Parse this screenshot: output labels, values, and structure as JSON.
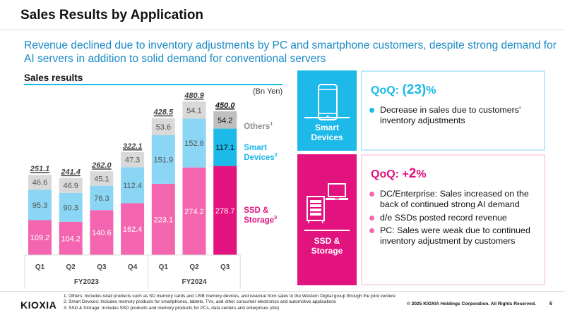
{
  "header": {
    "title": "Sales Results by Application",
    "headline": "Revenue declined due to inventory adjustments by PC and smartphone customers, despite strong demand for AI servers in addition to solid demand for conventional servers"
  },
  "sales_section": {
    "label": "Sales results",
    "unit": "(Bn Yen)"
  },
  "colors": {
    "ssd_storage": "#f465b0",
    "ssd_storage_latest": "#e2127f",
    "smart_devices": "#8ad6f4",
    "smart_devices_latest": "#1db9e9",
    "others": "#d9d9d9",
    "others_latest": "#bfbfbf"
  },
  "chart_data": {
    "type": "bar",
    "stacked": true,
    "title": "Sales results",
    "ylabel": "Bn Yen",
    "xlabel": "",
    "categories": [
      "Q1",
      "Q2",
      "Q3",
      "Q4",
      "Q1",
      "Q2",
      "Q3"
    ],
    "fiscal_years": [
      {
        "label": "FY2023",
        "quarters": [
          "Q1",
          "Q2",
          "Q3",
          "Q4"
        ]
      },
      {
        "label": "FY2024",
        "quarters": [
          "Q1",
          "Q2",
          "Q3"
        ]
      }
    ],
    "series": [
      {
        "name": "SSD & Storage",
        "footnote": "3",
        "values": [
          109.2,
          104.2,
          140.6,
          162.4,
          223.1,
          274.2,
          278.7
        ]
      },
      {
        "name": "Smart Devices",
        "footnote": "2",
        "values": [
          95.3,
          90.3,
          76.3,
          112.4,
          151.9,
          152.6,
          117.1
        ]
      },
      {
        "name": "Others",
        "footnote": "1",
        "values": [
          46.6,
          46.9,
          45.1,
          47.3,
          53.6,
          54.1,
          54.2
        ]
      }
    ],
    "totals": [
      "251.1",
      "241.4",
      "262.0",
      "322.1",
      "428.5",
      "480.9",
      "450.0"
    ],
    "legend_position": "right",
    "grid": false,
    "ylim": [
      0,
      500
    ]
  },
  "legend": {
    "others": "Others",
    "others_sup": "1",
    "smart_line1": "Smart",
    "smart_line2": "Devices",
    "smart_sup": "2",
    "ssd_line1": "SSD &",
    "ssd_line2": "Storage",
    "ssd_sup": "3"
  },
  "panels": {
    "smart_devices": {
      "icon": "smartphone-icon",
      "label_line1": "Smart",
      "label_line2": "Devices",
      "qoq_prefix": "QoQ: ",
      "qoq_value": "(23)",
      "qoq_suffix": "%",
      "bullets": [
        "Decrease in sales due to customers' inventory adjustments"
      ]
    },
    "ssd_storage": {
      "icon": "server-laptop-icon",
      "label_line1": "SSD &",
      "label_line2": "Storage",
      "qoq_prefix": "QoQ: +",
      "qoq_value": "2",
      "qoq_suffix": "%",
      "bullets": [
        "DC/Enterprise: Sales increased on the back of continued strong AI demand",
        "d/e SSDs posted record revenue",
        "PC: Sales were weak due to continued inventory adjustment by customers"
      ]
    }
  },
  "footer": {
    "logo": "KIOXIA",
    "footnotes": [
      "1. Others: Includes retail products such as SD memory cards and USB memory devices, and revenue from sales to the Western Digital group through the joint venture",
      "2. Smart Devices: Includes memory products for smartphones, tablets, TVs, and other consumer electronics and automotive applications",
      "3. SSD & Storage: Includes SSD products and memory products for PCs, data centers and enterprises (d/e)"
    ],
    "copyright": "© 2025 KIOXIA Holdings Corporation. All Rights Reserved.",
    "page_number": "6"
  }
}
